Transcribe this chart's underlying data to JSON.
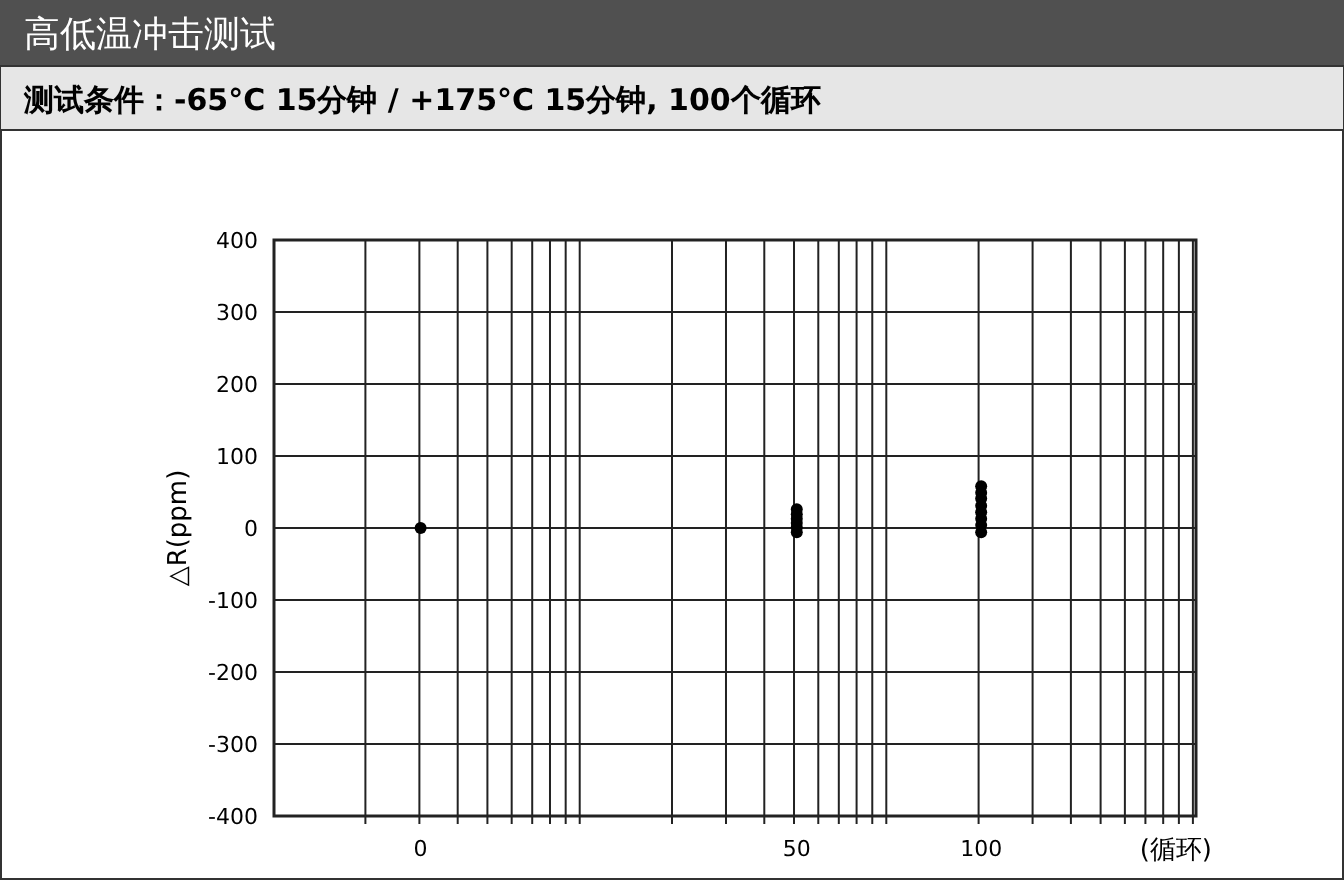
{
  "chart_data": {
    "type": "scatter",
    "title": "高低温冲击测试",
    "subtitle": "测试条件：-65°C 15分钟 / +175°C 15分钟, 100个循环",
    "xlabel": "(循环)",
    "ylabel": "△R(ppm)",
    "categories": [
      "0",
      "50",
      "100"
    ],
    "ylim": [
      -400,
      400
    ],
    "yticks": [
      -400,
      -300,
      -200,
      -100,
      0,
      100,
      200,
      300,
      400
    ],
    "grid": true,
    "marker": "circle",
    "series": [
      {
        "color": "#000000",
        "x": [
          "0",
          "50",
          "50",
          "50",
          "50",
          "50",
          "50",
          "100",
          "100",
          "100",
          "100",
          "100",
          "100",
          "100",
          "100"
        ],
        "values": [
          0,
          26,
          19,
          13,
          7,
          1,
          -6,
          58,
          49,
          41,
          31,
          22,
          13,
          4,
          -6
        ]
      }
    ]
  }
}
